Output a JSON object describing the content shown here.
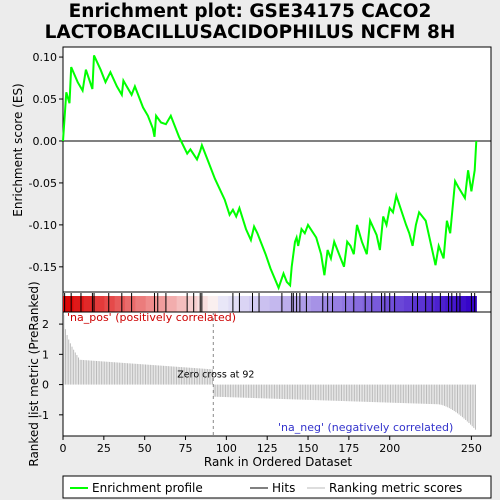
{
  "title_line1": "Enrichment plot: GSE34175 CACO2",
  "title_line2": "LACTOBACILLUSACIDOPHILUS NCFM 8H",
  "chart_data": {
    "type": "line",
    "es_panel": {
      "ylabel": "Enrichment score (ES)",
      "yticks": [
        "0.10",
        "0.05",
        "0.00",
        "-0.05",
        "-0.10",
        "-0.15"
      ],
      "ylim": [
        -0.18,
        0.112
      ],
      "series": [
        {
          "name": "Enrichment profile",
          "color": "#00ff00",
          "x": [
            0,
            2,
            4,
            5,
            9,
            12,
            14,
            18,
            19,
            23,
            26,
            29,
            33,
            36,
            37,
            42,
            44,
            49,
            52,
            55,
            56,
            57,
            60,
            63,
            66,
            71,
            76,
            78,
            82,
            84,
            85,
            89,
            93,
            99,
            102,
            104,
            106,
            108,
            112,
            115,
            117,
            119,
            124,
            127,
            132,
            135,
            137,
            139,
            140,
            142,
            143,
            144,
            146,
            148,
            150,
            155,
            158,
            160,
            162,
            164,
            166,
            170,
            172,
            174,
            176,
            178,
            180,
            183,
            186,
            188,
            192,
            194,
            196,
            198,
            200,
            202,
            204,
            210,
            212,
            214,
            216,
            218,
            222,
            226,
            228,
            230,
            233,
            235,
            237,
            240,
            242,
            246,
            248,
            250,
            252,
            253
          ],
          "y": [
            0.0,
            0.058,
            0.045,
            0.088,
            0.07,
            0.06,
            0.085,
            0.062,
            0.102,
            0.085,
            0.07,
            0.082,
            0.065,
            0.055,
            0.072,
            0.055,
            0.065,
            0.04,
            0.03,
            0.015,
            0.005,
            0.03,
            0.022,
            0.02,
            0.03,
            0.005,
            -0.015,
            -0.01,
            -0.022,
            -0.012,
            -0.005,
            -0.025,
            -0.045,
            -0.07,
            -0.088,
            -0.082,
            -0.09,
            -0.08,
            -0.105,
            -0.118,
            -0.102,
            -0.11,
            -0.135,
            -0.152,
            -0.175,
            -0.158,
            -0.168,
            -0.172,
            -0.15,
            -0.12,
            -0.115,
            -0.125,
            -0.105,
            -0.11,
            -0.1,
            -0.115,
            -0.135,
            -0.16,
            -0.13,
            -0.14,
            -0.12,
            -0.14,
            -0.15,
            -0.12,
            -0.125,
            -0.135,
            -0.1,
            -0.12,
            -0.135,
            -0.095,
            -0.112,
            -0.13,
            -0.09,
            -0.1,
            -0.08,
            -0.085,
            -0.065,
            -0.1,
            -0.11,
            -0.125,
            -0.1,
            -0.085,
            -0.095,
            -0.13,
            -0.148,
            -0.125,
            -0.14,
            -0.095,
            -0.11,
            -0.048,
            -0.055,
            -0.068,
            -0.035,
            -0.06,
            -0.035,
            0.0
          ]
        }
      ]
    },
    "hits": [
      1,
      5,
      11,
      18,
      19,
      28,
      36,
      42,
      56,
      58,
      63,
      76,
      80,
      84,
      85,
      104,
      108,
      116,
      120,
      134,
      140,
      141,
      143,
      145,
      149,
      159,
      162,
      165,
      173,
      178,
      185,
      189,
      195,
      197,
      200,
      203,
      214,
      217,
      222,
      226,
      231,
      236,
      238,
      241,
      243,
      250,
      252
    ],
    "rank_panel": {
      "ylabel": "Ranked list metric (PreRanked)",
      "xlabel": "Rank in Ordered Dataset",
      "xticks": [
        "0",
        "25",
        "50",
        "75",
        "100",
        "125",
        "150",
        "175",
        "200",
        "250"
      ],
      "yticks": [
        "2",
        "1",
        "0",
        "-1"
      ],
      "xlim": [
        0,
        262
      ],
      "ylim": [
        -1.7,
        2.4
      ],
      "zero_cross_label": "Zero cross at 92",
      "zero_cross_rank": 92,
      "pos_label": "'na_pos' (positively correlated)",
      "neg_label": "'na_neg' (negatively correlated)",
      "pos_color": "#cc0000",
      "neg_color": "#3333cc",
      "n_genes": 253,
      "metric_shape": {
        "start": 2.3,
        "plateau_pos": 0.82,
        "near_cross_pos": 0.5,
        "near_cross_neg": -0.4,
        "plateau_neg": -0.65,
        "end": -1.55
      }
    },
    "legend": [
      {
        "label": "Enrichment profile",
        "color": "#00ff00"
      },
      {
        "label": "Hits",
        "color": "#000000"
      },
      {
        "label": "Ranking metric scores",
        "color": "#bbbbbb"
      }
    ]
  }
}
